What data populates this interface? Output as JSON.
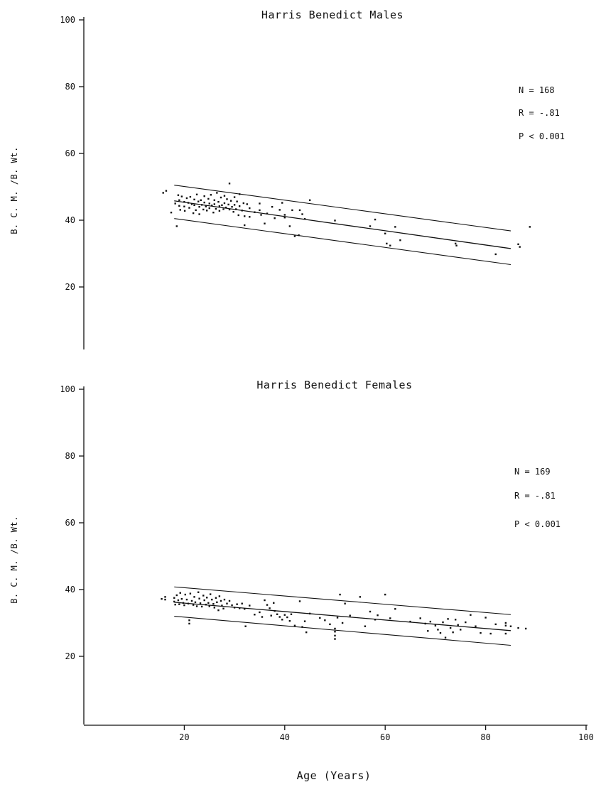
{
  "chart_data": [
    {
      "type": "scatter",
      "title": "Harris Benedict Males",
      "ylabel": "B. C. M. /B. Wt.",
      "xlabel": "",
      "xlim": [
        0,
        100
      ],
      "ylim": [
        0,
        100
      ],
      "xticks": [],
      "yticks": [
        20,
        40,
        60,
        80,
        100
      ],
      "stats": [
        "N = 168",
        "R = -.81",
        "P < 0.001"
      ],
      "regression": {
        "x": [
          18,
          85
        ],
        "y": [
          45.8,
          31.5
        ]
      },
      "upper_band": {
        "x": [
          18,
          85
        ],
        "y": [
          50.5,
          36.8
        ]
      },
      "lower_band": {
        "x": [
          18,
          85
        ],
        "y": [
          40.5,
          26.7
        ]
      },
      "points": [
        [
          15.8,
          48.2
        ],
        [
          16.4,
          48.8
        ],
        [
          17.4,
          42.3
        ],
        [
          18.2,
          45.0
        ],
        [
          18.5,
          38.2
        ],
        [
          18.8,
          47.5
        ],
        [
          19.0,
          46.0
        ],
        [
          19.0,
          44.3
        ],
        [
          19.2,
          43.1
        ],
        [
          19.5,
          47.1
        ],
        [
          20.0,
          45.5
        ],
        [
          20.0,
          44.1
        ],
        [
          20.1,
          42.8
        ],
        [
          20.5,
          46.6
        ],
        [
          20.8,
          45.2
        ],
        [
          21.0,
          43.7
        ],
        [
          21.2,
          47.0
        ],
        [
          21.5,
          44.8
        ],
        [
          21.8,
          42.1
        ],
        [
          22.0,
          46.2
        ],
        [
          22.0,
          44.5
        ],
        [
          22.3,
          43.0
        ],
        [
          22.5,
          47.7
        ],
        [
          22.8,
          45.6
        ],
        [
          23.0,
          44.0
        ],
        [
          23.0,
          41.8
        ],
        [
          23.3,
          46.0
        ],
        [
          23.5,
          44.6
        ],
        [
          23.8,
          43.2
        ],
        [
          24.0,
          47.2
        ],
        [
          24.0,
          45.3
        ],
        [
          24.3,
          44.1
        ],
        [
          24.5,
          42.9
        ],
        [
          24.8,
          46.4
        ],
        [
          25.0,
          45.0
        ],
        [
          25.0,
          43.6
        ],
        [
          25.3,
          47.6
        ],
        [
          25.5,
          44.4
        ],
        [
          25.8,
          42.3
        ],
        [
          26.0,
          46.0
        ],
        [
          26.0,
          44.8
        ],
        [
          26.3,
          43.4
        ],
        [
          26.5,
          48.2
        ],
        [
          26.8,
          45.5
        ],
        [
          27.0,
          44.2
        ],
        [
          27.0,
          42.8
        ],
        [
          27.3,
          46.8
        ],
        [
          27.5,
          44.5
        ],
        [
          27.8,
          43.3
        ],
        [
          28.0,
          47.3
        ],
        [
          28.0,
          45.1
        ],
        [
          28.3,
          43.8
        ],
        [
          28.5,
          46.3
        ],
        [
          28.8,
          44.7
        ],
        [
          29.0,
          51.0
        ],
        [
          29.0,
          43.2
        ],
        [
          29.3,
          45.8
        ],
        [
          29.5,
          44.0
        ],
        [
          29.8,
          42.5
        ],
        [
          30.0,
          46.9
        ],
        [
          30.0,
          44.6
        ],
        [
          30.3,
          43.3
        ],
        [
          30.5,
          45.6
        ],
        [
          30.8,
          41.5
        ],
        [
          31.0,
          47.8
        ],
        [
          31.0,
          44.2
        ],
        [
          31.5,
          42.9
        ],
        [
          31.8,
          45.1
        ],
        [
          32.0,
          41.2
        ],
        [
          32.0,
          38.5
        ],
        [
          32.5,
          44.8
        ],
        [
          33.0,
          43.6
        ],
        [
          33.0,
          41.0
        ],
        [
          34.0,
          42.4
        ],
        [
          35.0,
          45.0
        ],
        [
          35.0,
          43.0
        ],
        [
          35.3,
          41.6
        ],
        [
          36.0,
          39.0
        ],
        [
          36.5,
          42.0
        ],
        [
          37.5,
          44.0
        ],
        [
          38.0,
          40.6
        ],
        [
          39.0,
          43.1
        ],
        [
          39.5,
          45.2
        ],
        [
          40.0,
          41.6
        ],
        [
          40.0,
          40.8
        ],
        [
          41.0,
          38.2
        ],
        [
          41.5,
          43.0
        ],
        [
          42.0,
          35.2
        ],
        [
          42.8,
          35.5
        ],
        [
          43.0,
          43.0
        ],
        [
          43.5,
          41.8
        ],
        [
          44.0,
          40.4
        ],
        [
          45.0,
          46.0
        ],
        [
          50.0,
          39.9
        ],
        [
          57.0,
          38.2
        ],
        [
          58.0,
          40.2
        ],
        [
          60.0,
          36.0
        ],
        [
          60.3,
          33.0
        ],
        [
          61.0,
          32.4
        ],
        [
          62.0,
          38.0
        ],
        [
          63.0,
          34.0
        ],
        [
          74.0,
          33.0
        ],
        [
          74.2,
          32.4
        ],
        [
          82.0,
          29.8
        ],
        [
          86.5,
          32.8
        ],
        [
          86.8,
          32.0
        ],
        [
          88.8,
          38.0
        ]
      ]
    },
    {
      "type": "scatter",
      "title": "Harris Benedict Females",
      "ylabel": "B. C. M. /B. Wt.",
      "xlabel": "Age (Years)",
      "xlim": [
        0,
        100
      ],
      "ylim": [
        0,
        100
      ],
      "xticks": [
        20,
        40,
        60,
        80,
        100
      ],
      "yticks": [
        20,
        40,
        60,
        80,
        100
      ],
      "stats": [
        "N = 169",
        "R = -.81",
        "P < 0.001"
      ],
      "regression": {
        "x": [
          18,
          85
        ],
        "y": [
          36.2,
          27.7
        ]
      },
      "upper_band": {
        "x": [
          18,
          85
        ],
        "y": [
          40.8,
          32.5
        ]
      },
      "lower_band": {
        "x": [
          18,
          85
        ],
        "y": [
          32.0,
          23.3
        ]
      },
      "points": [
        [
          15.5,
          37.2
        ],
        [
          16.2,
          37.8
        ],
        [
          16.2,
          37.0
        ],
        [
          18.0,
          37.5
        ],
        [
          18.0,
          36.4
        ],
        [
          18.2,
          35.5
        ],
        [
          18.5,
          38.3
        ],
        [
          18.8,
          36.8
        ],
        [
          19.0,
          35.6
        ],
        [
          19.2,
          39.0
        ],
        [
          19.5,
          37.2
        ],
        [
          19.8,
          36.0
        ],
        [
          20.0,
          35.3
        ],
        [
          20.2,
          38.5
        ],
        [
          20.5,
          37.0
        ],
        [
          20.8,
          35.8
        ],
        [
          21.0,
          30.8
        ],
        [
          21.0,
          29.8
        ],
        [
          21.2,
          38.8
        ],
        [
          21.5,
          36.6
        ],
        [
          21.8,
          35.4
        ],
        [
          22.0,
          37.8
        ],
        [
          22.2,
          36.2
        ],
        [
          22.5,
          35.0
        ],
        [
          22.8,
          39.2
        ],
        [
          23.0,
          37.3
        ],
        [
          23.2,
          35.9
        ],
        [
          23.5,
          34.9
        ],
        [
          23.8,
          38.2
        ],
        [
          24.0,
          36.8
        ],
        [
          24.3,
          35.5
        ],
        [
          24.5,
          37.6
        ],
        [
          24.8,
          36.0
        ],
        [
          25.0,
          35.0
        ],
        [
          25.2,
          38.6
        ],
        [
          25.5,
          37.0
        ],
        [
          25.8,
          35.7
        ],
        [
          26.0,
          34.6
        ],
        [
          26.3,
          37.5
        ],
        [
          26.5,
          36.2
        ],
        [
          26.8,
          33.8
        ],
        [
          27.0,
          38.0
        ],
        [
          27.3,
          36.6
        ],
        [
          27.5,
          35.2
        ],
        [
          27.8,
          34.3
        ],
        [
          28.0,
          37.0
        ],
        [
          28.5,
          35.8
        ],
        [
          29.0,
          36.6
        ],
        [
          29.5,
          35.3
        ],
        [
          30.0,
          34.6
        ],
        [
          30.5,
          35.6
        ],
        [
          31.0,
          34.4
        ],
        [
          31.5,
          35.8
        ],
        [
          32.0,
          34.2
        ],
        [
          32.2,
          29.0
        ],
        [
          33.0,
          35.2
        ],
        [
          34.0,
          32.5
        ],
        [
          35.0,
          33.2
        ],
        [
          35.5,
          31.8
        ],
        [
          36.0,
          36.8
        ],
        [
          36.5,
          35.4
        ],
        [
          37.0,
          34.4
        ],
        [
          37.3,
          32.2
        ],
        [
          37.8,
          36.0
        ],
        [
          38.0,
          33.6
        ],
        [
          38.5,
          32.6
        ],
        [
          39.0,
          31.8
        ],
        [
          39.5,
          31.0
        ],
        [
          40.0,
          32.4
        ],
        [
          40.5,
          31.7
        ],
        [
          41.0,
          30.6
        ],
        [
          41.3,
          32.6
        ],
        [
          42.0,
          29.2
        ],
        [
          43.0,
          36.5
        ],
        [
          43.5,
          28.8
        ],
        [
          44.0,
          30.5
        ],
        [
          44.3,
          27.2
        ],
        [
          45.0,
          32.8
        ],
        [
          47.0,
          31.5
        ],
        [
          48.0,
          30.8
        ],
        [
          49.0,
          29.6
        ],
        [
          50.0,
          28.3
        ],
        [
          50.0,
          27.4
        ],
        [
          50.0,
          26.2
        ],
        [
          50.0,
          25.2
        ],
        [
          50.5,
          31.6
        ],
        [
          51.0,
          38.5
        ],
        [
          51.5,
          30.0
        ],
        [
          52.0,
          35.8
        ],
        [
          53.0,
          32.2
        ],
        [
          55.0,
          37.8
        ],
        [
          56.0,
          29.0
        ],
        [
          57.0,
          33.4
        ],
        [
          58.0,
          31.0
        ],
        [
          58.5,
          32.3
        ],
        [
          60.0,
          38.5
        ],
        [
          61.0,
          31.4
        ],
        [
          62.0,
          34.2
        ],
        [
          65.0,
          30.4
        ],
        [
          67.0,
          31.4
        ],
        [
          68.0,
          29.8
        ],
        [
          68.5,
          27.6
        ],
        [
          69.0,
          30.4
        ],
        [
          70.0,
          29.2
        ],
        [
          70.5,
          28.0
        ],
        [
          71.0,
          27.0
        ],
        [
          71.5,
          30.2
        ],
        [
          72.0,
          25.6
        ],
        [
          72.5,
          31.2
        ],
        [
          73.0,
          28.5
        ],
        [
          73.5,
          27.2
        ],
        [
          74.0,
          31.0
        ],
        [
          74.5,
          29.4
        ],
        [
          75.0,
          28.0
        ],
        [
          76.0,
          30.2
        ],
        [
          77.0,
          32.4
        ],
        [
          78.0,
          29.0
        ],
        [
          79.0,
          27.0
        ],
        [
          80.0,
          31.6
        ],
        [
          81.0,
          26.8
        ],
        [
          82.0,
          29.6
        ],
        [
          84.0,
          30.0
        ],
        [
          84.0,
          29.2
        ],
        [
          84.0,
          26.8
        ],
        [
          85.0,
          29.0
        ],
        [
          86.5,
          28.5
        ],
        [
          88.0,
          28.3
        ]
      ]
    }
  ]
}
